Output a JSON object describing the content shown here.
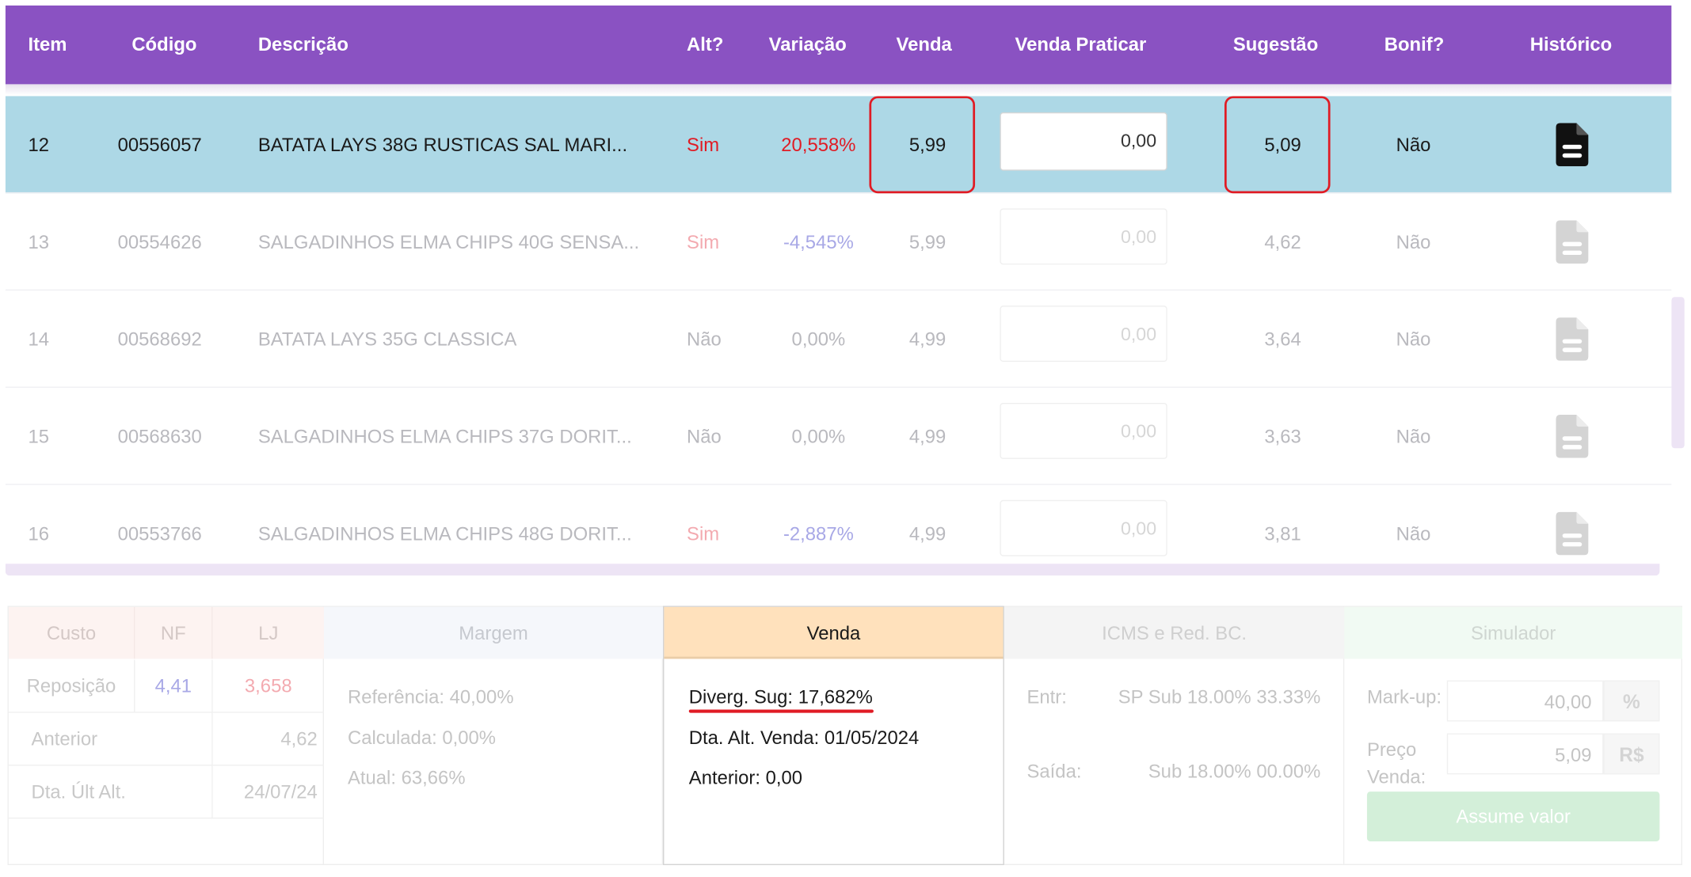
{
  "columns": {
    "item": "Item",
    "codigo": "Código",
    "descricao": "Descrição",
    "alt": "Alt?",
    "variacao": "Variação",
    "venda": "Venda",
    "venda_praticar": "Venda Praticar",
    "sugestao": "Sugestão",
    "bonif": "Bonif?",
    "historico": "Histórico"
  },
  "rows": [
    {
      "item": "12",
      "codigo": "00556057",
      "descricao": "BATATA LAYS 38G RUSTICAS SAL MARI...",
      "alt": "Sim",
      "variacao": "20,558%",
      "venda": "5,99",
      "venda_praticar": "0,00",
      "sugestao": "5,09",
      "bonif": "Não",
      "selected": true
    },
    {
      "item": "13",
      "codigo": "00554626",
      "descricao": "SALGADINHOS ELMA CHIPS 40G SENSA...",
      "alt": "Sim",
      "variacao": "-4,545%",
      "venda": "5,99",
      "venda_praticar": "0,00",
      "sugestao": "4,62",
      "bonif": "Não",
      "selected": false
    },
    {
      "item": "14",
      "codigo": "00568692",
      "descricao": "BATATA LAYS 35G CLASSICA",
      "alt": "Não",
      "variacao": "0,00%",
      "venda": "4,99",
      "venda_praticar": "0,00",
      "sugestao": "3,64",
      "bonif": "Não",
      "selected": false
    },
    {
      "item": "15",
      "codigo": "00568630",
      "descricao": "SALGADINHOS ELMA CHIPS 37G DORIT...",
      "alt": "Não",
      "variacao": "0,00%",
      "venda": "4,99",
      "venda_praticar": "0,00",
      "sugestao": "3,63",
      "bonif": "Não",
      "selected": false
    },
    {
      "item": "16",
      "codigo": "00553766",
      "descricao": "SALGADINHOS ELMA CHIPS 48G DORIT...",
      "alt": "Sim",
      "variacao": "-2,887%",
      "venda": "4,99",
      "venda_praticar": "0,00",
      "sugestao": "3,81",
      "bonif": "Não",
      "selected": false
    }
  ],
  "icons": {
    "historico": "document-icon"
  },
  "colors": {
    "header": "#8a52c2",
    "selected_row": "#add8e6",
    "highlight": "#e01b24",
    "venda_panel": "#ffe1bc"
  },
  "custo": {
    "header": "Custo",
    "nf_header": "NF",
    "lj_header": "LJ",
    "reposicao_label": "Reposição",
    "reposicao_nf": "4,41",
    "reposicao_lj": "3,658",
    "anterior_label": "Anterior",
    "anterior_value": "4,62",
    "dta_label": "Dta. Últ Alt.",
    "dta_value": "24/07/24"
  },
  "margem": {
    "header": "Margem",
    "referencia": "Referência: 40,00%",
    "calculada": "Calculada: 0,00%",
    "atual": "Atual: 63,66%"
  },
  "venda_panel": {
    "header": "Venda",
    "diverg": "Diverg. Sug: 17,682%",
    "dta_alt": "Dta. Alt. Venda: 01/05/2024",
    "anterior": "Anterior: 0,00"
  },
  "icms": {
    "header": "ICMS e Red. BC.",
    "entr_label": "Entr:",
    "entr_value": "SP Sub 18.00% 33.33%",
    "saida_label": "Saída:",
    "saida_value": "Sub 18.00% 00.00%"
  },
  "simulador": {
    "header": "Simulador",
    "markup_label": "Mark-up:",
    "markup_value": "40,00",
    "markup_unit": "%",
    "preco_label_1": "Preço",
    "preco_label_2": "Venda:",
    "preco_value": "5,09",
    "preco_unit": "R$",
    "button": "Assume valor"
  }
}
